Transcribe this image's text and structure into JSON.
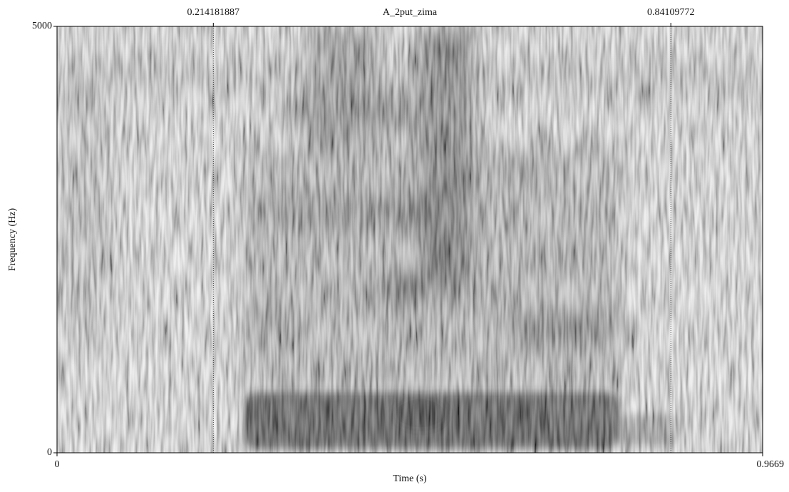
{
  "chart_data": {
    "type": "spectrogram",
    "title": "A_2put_zima",
    "x_label": "Time (s)",
    "y_label": "Frequency (Hz)",
    "xlim": [
      0,
      0.9669
    ],
    "ylim": [
      0,
      5000
    ],
    "xticks": [
      0,
      0.9669
    ],
    "yticks": [
      0,
      5000
    ],
    "markers": [
      0.214181887,
      0.84109772
    ]
  }
}
